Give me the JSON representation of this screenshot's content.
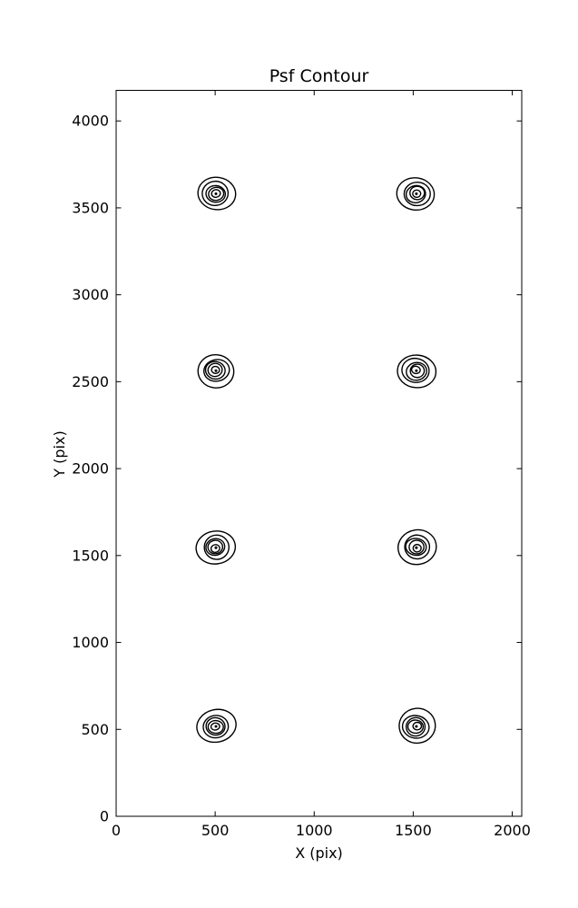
{
  "chart_data": {
    "type": "contour",
    "title": "Psf Contour",
    "xlabel": "X (pix)",
    "ylabel": "Y (pix)",
    "xlim": [
      0,
      2048
    ],
    "ylim": [
      0,
      4176
    ],
    "xticks": [
      0,
      500,
      1000,
      1500,
      2000
    ],
    "yticks": [
      0,
      500,
      1000,
      1500,
      2000,
      2500,
      3000,
      3500,
      4000
    ],
    "grid": false,
    "legend": "none",
    "line_color": "#000000",
    "background_color": "#ffffff",
    "psf_centers": [
      {
        "x": 504,
        "y": 517
      },
      {
        "x": 1516,
        "y": 517
      },
      {
        "x": 504,
        "y": 1545
      },
      {
        "x": 1516,
        "y": 1545
      },
      {
        "x": 504,
        "y": 2563
      },
      {
        "x": 1516,
        "y": 2563
      },
      {
        "x": 504,
        "y": 3581
      },
      {
        "x": 1516,
        "y": 3581
      }
    ],
    "contour_ring_radii_pix": [
      96,
      66,
      50,
      37,
      21
    ],
    "center_dot_radius_pix": 7
  }
}
